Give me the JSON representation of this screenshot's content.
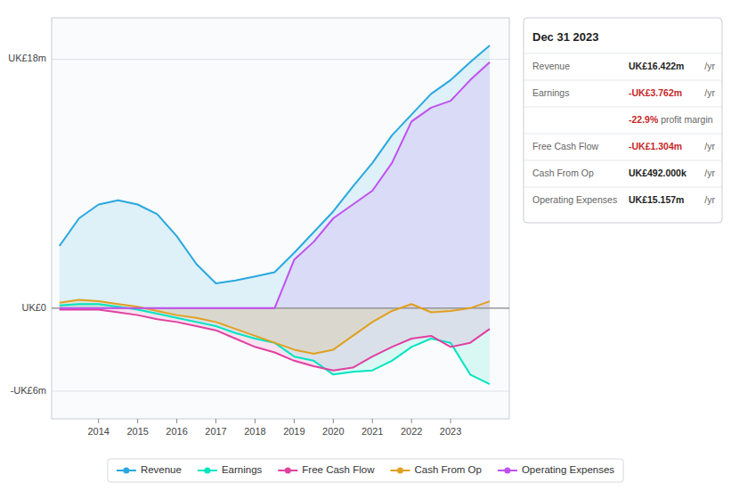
{
  "chart_data": {
    "type": "area",
    "x": [
      2013.0,
      2013.5,
      2014.0,
      2014.5,
      2015.0,
      2015.5,
      2016.0,
      2016.5,
      2017.0,
      2017.5,
      2018.0,
      2018.5,
      2019.0,
      2019.5,
      2020.0,
      2020.5,
      2021.0,
      2021.5,
      2022.0,
      2022.5,
      2023.0,
      2023.5,
      2024.0
    ],
    "series": [
      {
        "name": "Revenue",
        "color": "#29a8e0",
        "values": [
          4.5,
          6.5,
          7.5,
          7.8,
          7.5,
          6.8,
          5.2,
          3.2,
          1.8,
          2.0,
          2.3,
          2.6,
          4.0,
          5.5,
          7.0,
          8.8,
          10.5,
          12.5,
          14.0,
          15.5,
          16.5,
          17.8,
          19.0
        ]
      },
      {
        "name": "Earnings",
        "color": "#00e5c0",
        "values": [
          0.2,
          0.3,
          0.3,
          0.1,
          -0.1,
          -0.4,
          -0.7,
          -1.0,
          -1.3,
          -1.8,
          -2.2,
          -2.5,
          -3.5,
          -3.8,
          -4.8,
          -4.6,
          -4.5,
          -3.8,
          -2.8,
          -2.2,
          -2.5,
          -4.8,
          -5.5
        ]
      },
      {
        "name": "Free Cash Flow",
        "color": "#e040a0",
        "values": [
          -0.1,
          -0.1,
          -0.1,
          -0.3,
          -0.5,
          -0.8,
          -1.0,
          -1.3,
          -1.6,
          -2.2,
          -2.8,
          -3.2,
          -3.8,
          -4.2,
          -4.5,
          -4.3,
          -3.5,
          -2.8,
          -2.2,
          -2.0,
          -2.8,
          -2.5,
          -1.5
        ]
      },
      {
        "name": "Cash From Op",
        "color": "#e0a020",
        "values": [
          0.4,
          0.6,
          0.5,
          0.3,
          0.1,
          -0.2,
          -0.5,
          -0.7,
          -1.0,
          -1.5,
          -2.0,
          -2.5,
          -3.0,
          -3.3,
          -3.0,
          -2.0,
          -1.0,
          -0.2,
          0.3,
          -0.3,
          -0.2,
          0.0,
          0.5
        ]
      },
      {
        "name": "Operating Expenses",
        "color": "#c050f0",
        "values": [
          0.0,
          0.0,
          0.0,
          0.0,
          0.0,
          0.0,
          0.0,
          0.0,
          0.0,
          0.0,
          0.0,
          0.0,
          3.5,
          4.8,
          6.5,
          7.5,
          8.5,
          10.5,
          13.5,
          14.5,
          15.0,
          16.5,
          17.8
        ]
      }
    ],
    "xlim": [
      2012.8,
      2024.5
    ],
    "xticks": [
      2014,
      2015,
      2016,
      2017,
      2018,
      2019,
      2020,
      2021,
      2022,
      2023
    ],
    "ylim": [
      -8,
      21
    ],
    "yticks": [
      {
        "value": 18,
        "label": "UK£18m"
      },
      {
        "value": 0,
        "label": "UK£0"
      },
      {
        "value": -6,
        "label": "-UK£6m"
      }
    ],
    "grid": true,
    "legend": "bottom",
    "annotations": [
      [
        "Dec 31 2023"
      ],
      [
        "Revenue",
        "UK£16.422m",
        "/yr"
      ],
      [
        "Earnings",
        "-UK£3.762m",
        "/yr"
      ],
      [
        "-22.9%",
        " profit margin"
      ],
      [
        "Free Cash Flow",
        "-UK£1.304m",
        "/yr"
      ],
      [
        "Cash From Op",
        "UK£492.000k",
        "/yr"
      ],
      [
        "Operating Expenses",
        "UK£15.157m",
        "/yr"
      ]
    ]
  }
}
